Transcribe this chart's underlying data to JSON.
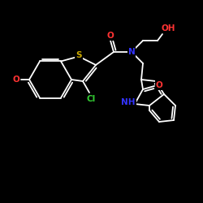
{
  "bg_color": "#000000",
  "line_color": "#ffffff",
  "atom_colors": {
    "O": "#ff3333",
    "N": "#3333ff",
    "S": "#ccaa00",
    "Cl": "#33cc33",
    "C": "#ffffff",
    "H": "#ffffff"
  },
  "figsize": [
    2.5,
    2.5
  ],
  "dpi": 100,
  "lw": 1.3
}
